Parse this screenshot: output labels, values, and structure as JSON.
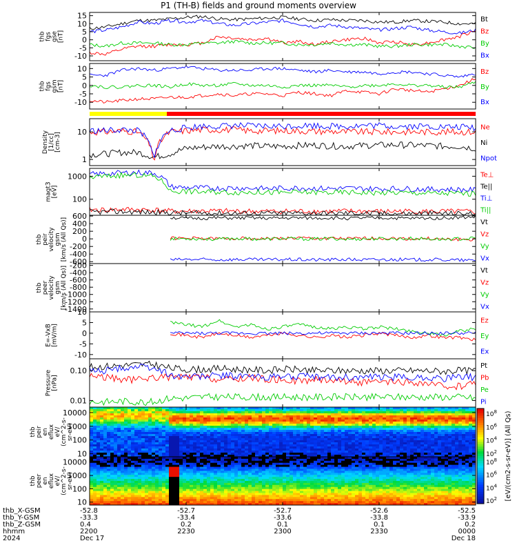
{
  "title": "P1 (TH-B) fields and ground moments overview",
  "panels": [
    {
      "id": "fgs_gse",
      "ylabel_lines": [
        "thb",
        "fgs",
        "gse",
        "[nT]"
      ],
      "yticks": [
        15,
        10,
        5,
        0,
        -5,
        -10
      ],
      "ylim": [
        -13,
        17
      ],
      "log": false,
      "series": [
        {
          "name": "Bt",
          "color": "#000000",
          "seed": 11,
          "y": [
            7,
            8,
            10,
            12,
            12,
            13,
            14,
            14.5,
            13,
            12.5,
            13,
            13.5,
            14,
            13,
            12,
            12.5,
            12,
            12,
            11,
            11,
            12,
            11.5,
            11,
            10,
            10
          ]
        },
        {
          "name": "Bz",
          "color": "#ff0000",
          "seed": 12,
          "y": [
            -8,
            -9,
            -6,
            -4,
            -4,
            -3,
            -3,
            -2,
            2,
            1,
            0,
            1,
            -2,
            -1,
            -3,
            -1,
            0,
            1,
            -2,
            -1,
            -3,
            -2,
            0,
            2,
            6
          ]
        },
        {
          "name": "By",
          "color": "#00cc00",
          "seed": 13,
          "y": [
            -3,
            -4,
            -2,
            -2,
            -2,
            -3,
            -3,
            -2,
            -2,
            -1,
            -2,
            -2,
            -2,
            -3,
            -3,
            -2,
            -3,
            -3,
            -4,
            -4,
            -3,
            -3,
            -3,
            -4,
            -5
          ]
        },
        {
          "name": "Bx",
          "color": "#0000ff",
          "seed": 14,
          "y": [
            5,
            6,
            8,
            11,
            10,
            12,
            11,
            12,
            10,
            9,
            10,
            11,
            12,
            10,
            8,
            9,
            8,
            7,
            6,
            7,
            8,
            6,
            5,
            4,
            6
          ]
        }
      ]
    },
    {
      "id": "fgs_gsm",
      "ylabel_lines": [
        "thb",
        "fgs",
        "gsm",
        "[nT]"
      ],
      "yticks": [
        10,
        5,
        0,
        -5,
        -10
      ],
      "ylim": [
        -14,
        13
      ],
      "log": false,
      "series": [
        {
          "name": "Bz",
          "color": "#ff0000",
          "seed": 21,
          "y": [
            -9,
            -10,
            -9,
            -8,
            -8,
            -7,
            -7,
            -6,
            -5,
            -6,
            -5,
            -5,
            -6,
            -4,
            -5,
            -6,
            -3,
            -4,
            -5,
            -2,
            -3,
            -4,
            -2,
            0,
            4
          ]
        },
        {
          "name": "By",
          "color": "#00cc00",
          "seed": 22,
          "y": [
            0,
            -1,
            -1,
            0,
            0,
            -1,
            1,
            0,
            0,
            1,
            0,
            0,
            -1,
            0,
            0,
            0,
            -1,
            0,
            0,
            1,
            0,
            0,
            -1,
            -1,
            2
          ]
        },
        {
          "name": "Bx",
          "color": "#0000ff",
          "seed": 23,
          "y": [
            6,
            6,
            9,
            10,
            9,
            10,
            11,
            10,
            9,
            9,
            9,
            10,
            10,
            9,
            8,
            9,
            8,
            8,
            7,
            8,
            8,
            7,
            6,
            5,
            7
          ]
        }
      ]
    },
    {
      "id": "density",
      "ylabel_lines": [
        "Density",
        "[1/cc]",
        "[cm-3]"
      ],
      "yticks": [
        10,
        1
      ],
      "ytick_labels": [
        "10",
        "1"
      ],
      "ylim": [
        0.6,
        30
      ],
      "log": true,
      "series": [
        {
          "name": "Ne",
          "color": "#ff0000",
          "seed": 31,
          "y": [
            10,
            10,
            11,
            10,
            0.7,
            10,
            11,
            12,
            12,
            12,
            11,
            11,
            11,
            11,
            10.5,
            10.5,
            10,
            10,
            10,
            10,
            10,
            10,
            10,
            10,
            10
          ]
        },
        {
          "name": "Ni",
          "color": "#000000",
          "seed": 32,
          "y": [
            1.5,
            1.6,
            1.8,
            1.8,
            1.2,
            1.6,
            2.5,
            2.8,
            3,
            3,
            3.2,
            3,
            3,
            3.2,
            3.3,
            3.1,
            3,
            3.2,
            3.3,
            3.4,
            3.3,
            3.2,
            3,
            3,
            2.5
          ]
        },
        {
          "name": "Npot",
          "color": "#0000ff",
          "seed": 33,
          "y": [
            11,
            11,
            12,
            11,
            0.7,
            11,
            14,
            16,
            16,
            17,
            16,
            16,
            16,
            17,
            17,
            16,
            16,
            17,
            17,
            16,
            16,
            16,
            15,
            15,
            14
          ]
        }
      ]
    },
    {
      "id": "temp",
      "ylabel_lines": [
        "magt3",
        "[eV]"
      ],
      "yticks": [
        1000,
        100
      ],
      "ytick_labels": [
        "1000",
        "100"
      ],
      "ylim": [
        20,
        2200
      ],
      "log": true,
      "series": [
        {
          "name": "Te⊥",
          "color": "#ff0000",
          "seed": 41,
          "y": [
            35,
            34,
            36,
            35,
            34,
            30,
            30,
            31,
            30,
            30,
            30,
            29,
            30,
            30,
            30,
            29,
            30,
            30,
            29,
            30,
            30,
            29,
            29,
            29,
            28
          ]
        },
        {
          "name": "Te||",
          "color": "#000000",
          "seed": 42,
          "y": [
            28,
            28,
            29,
            28,
            27,
            26,
            25,
            25,
            25,
            25,
            24,
            25,
            24,
            25,
            25,
            24,
            25,
            25,
            24,
            24,
            24,
            24,
            24,
            24,
            23
          ]
        },
        {
          "name": "Ti⊥",
          "color": "#0000ff",
          "seed": 43,
          "y": [
            1200,
            1300,
            1400,
            1450,
            1400,
            350,
            320,
            310,
            300,
            310,
            300,
            290,
            300,
            310,
            300,
            290,
            300,
            290,
            280,
            290,
            280,
            270,
            270,
            260,
            250
          ]
        },
        {
          "name": "Ti||",
          "color": "#00cc00",
          "seed": 44,
          "y": [
            900,
            1000,
            1100,
            1100,
            1000,
            230,
            220,
            210,
            210,
            200,
            205,
            200,
            195,
            200,
            200,
            195,
            200,
            195,
            190,
            195,
            190,
            185,
            180,
            180,
            170
          ]
        }
      ]
    },
    {
      "id": "peir_vel",
      "ylabel_lines": [
        "thb",
        "peir",
        "velocity",
        "gsm",
        "[km/s (All Qs)]"
      ],
      "yticks": [
        600,
        400,
        200,
        0,
        -200,
        -400,
        -600
      ],
      "ylim": [
        -650,
        620
      ],
      "log": false,
      "series": [
        {
          "name": "Vt",
          "color": "#000000",
          "seed": 51,
          "y": [
            null,
            null,
            null,
            null,
            null,
            560,
            540,
            540,
            550,
            545,
            550,
            540,
            545,
            550,
            545,
            550,
            540,
            545,
            550,
            545,
            540,
            545,
            550,
            560,
            580
          ]
        },
        {
          "name": "Vz",
          "color": "#ff0000",
          "seed": 52,
          "y": [
            null,
            null,
            null,
            null,
            null,
            20,
            10,
            15,
            0,
            20,
            10,
            0,
            15,
            20,
            10,
            15,
            0,
            10,
            20,
            10,
            0,
            10,
            -20,
            -10,
            -30
          ]
        },
        {
          "name": "Vy",
          "color": "#00cc00",
          "seed": 53,
          "y": [
            null,
            null,
            null,
            null,
            null,
            0,
            10,
            0,
            -10,
            10,
            0,
            -10,
            10,
            0,
            -5,
            10,
            -10,
            0,
            5,
            0,
            10,
            0,
            -10,
            0,
            10
          ]
        },
        {
          "name": "Vx",
          "color": "#0000ff",
          "seed": 54,
          "y": [
            null,
            null,
            null,
            null,
            null,
            -550,
            -540,
            -545,
            -550,
            -540,
            -545,
            -550,
            -540,
            -545,
            -550,
            -545,
            -540,
            -550,
            -545,
            -540,
            -550,
            -545,
            -550,
            -560,
            -570
          ]
        }
      ]
    },
    {
      "id": "peer_vel",
      "ylabel_lines": [
        "thb",
        "peer",
        "velocity",
        "gsm",
        "[km/s (All Qs)]"
      ],
      "yticks": [
        -200,
        -400,
        -600,
        -800,
        -1000,
        -1200,
        -1400
      ],
      "ylim": [
        -1480,
        -150
      ],
      "log": false,
      "series": [
        {
          "name": "Vt",
          "color": "#000000",
          "seed": 61,
          "y": []
        },
        {
          "name": "Vz",
          "color": "#ff0000",
          "seed": 62,
          "y": []
        },
        {
          "name": "Vy",
          "color": "#00cc00",
          "seed": 63,
          "y": []
        },
        {
          "name": "Vx",
          "color": "#0000ff",
          "seed": 64,
          "y": []
        }
      ]
    },
    {
      "id": "efield",
      "ylabel_lines": [
        "E=-VxB",
        "[mV/m]"
      ],
      "yticks": [
        10,
        5,
        0,
        -5,
        -10
      ],
      "ylim": [
        -12,
        10
      ],
      "log": false,
      "series": [
        {
          "name": "Ez",
          "color": "#ff0000",
          "seed": 71,
          "y": [
            null,
            null,
            null,
            null,
            null,
            0,
            -1,
            -2,
            0,
            -1,
            -2,
            -1,
            0,
            -1,
            -2,
            -1,
            -2,
            -1,
            0,
            -1,
            -2,
            -1,
            -2,
            -2,
            -3
          ]
        },
        {
          "name": "Ey",
          "color": "#00cc00",
          "seed": 72,
          "y": [
            null,
            null,
            null,
            null,
            null,
            5,
            4,
            3,
            6,
            3,
            4,
            2,
            3,
            4,
            3,
            2,
            3,
            2,
            3,
            2,
            1,
            0,
            -1,
            1,
            2
          ]
        },
        {
          "name": "Ex",
          "color": "#0000ff",
          "seed": 73,
          "y": [
            null,
            null,
            null,
            null,
            null,
            0,
            0,
            0,
            0,
            0,
            0,
            0,
            0,
            0,
            0,
            0,
            0,
            0,
            0,
            0,
            0,
            0,
            0,
            0,
            0
          ]
        }
      ]
    },
    {
      "id": "pressure",
      "ylabel_lines": [
        "Pressure",
        "[nPa]"
      ],
      "yticks": [
        0.1,
        0.01
      ],
      "ytick_labels": [
        "0.10",
        "0.01"
      ],
      "ylim": [
        0.006,
        0.25
      ],
      "log": true,
      "series": [
        {
          "name": "Pt",
          "color": "#000000",
          "seed": 81,
          "y": [
            0.13,
            0.14,
            0.15,
            0.16,
            0.16,
            0.12,
            0.11,
            0.11,
            0.12,
            0.11,
            0.11,
            0.1,
            0.11,
            0.11,
            0.1,
            0.1,
            0.1,
            0.1,
            0.1,
            0.1,
            0.1,
            0.1,
            0.095,
            0.1,
            0.1
          ]
        },
        {
          "name": "Pb",
          "color": "#ff0000",
          "seed": 82,
          "y": [
            0.07,
            0.06,
            0.05,
            0.05,
            0.06,
            0.06,
            0.06,
            0.06,
            0.05,
            0.05,
            0.06,
            0.05,
            0.05,
            0.045,
            0.05,
            0.05,
            0.045,
            0.04,
            0.04,
            0.04,
            0.04,
            0.035,
            0.03,
            0.03,
            0.04
          ]
        },
        {
          "name": "Pe",
          "color": "#00cc00",
          "seed": 83,
          "y": [
            0.009,
            0.009,
            0.0095,
            0.009,
            0.009,
            0.012,
            0.012,
            0.013,
            0.013,
            0.013,
            0.013,
            0.013,
            0.013,
            0.013,
            0.013,
            0.013,
            0.013,
            0.013,
            0.013,
            0.013,
            0.013,
            0.013,
            0.013,
            0.013,
            0.012
          ]
        },
        {
          "name": "Pi",
          "color": "#0000ff",
          "seed": 84,
          "y": [
            0.1,
            0.1,
            0.12,
            0.14,
            0.12,
            0.07,
            0.065,
            0.065,
            0.07,
            0.065,
            0.065,
            0.06,
            0.065,
            0.065,
            0.06,
            0.06,
            0.06,
            0.06,
            0.06,
            0.06,
            0.06,
            0.06,
            0.055,
            0.06,
            0.06
          ]
        }
      ]
    },
    {
      "id": "peir_spec",
      "ylabel_lines": [
        "thb",
        "peir",
        "en",
        "eflux",
        "eV/",
        "(cm^2-s-",
        "sr-eV)"
      ],
      "yticks": [
        10000,
        1000,
        100,
        10
      ],
      "ytick_labels": [
        "10000",
        "1000",
        "100",
        "10"
      ],
      "ylim": [
        6,
        25000
      ],
      "log": true,
      "type": "spectrogram"
    },
    {
      "id": "peer_spec",
      "ylabel_lines": [
        "thb",
        "peer",
        "en",
        "eflux",
        "eV/",
        "(cm^2-s-",
        "sr-eV)"
      ],
      "yticks": [
        10000,
        1000,
        100,
        10
      ],
      "ytick_labels": [
        "10000",
        "1000",
        "100",
        "10"
      ],
      "ylim": [
        6,
        25000
      ],
      "log": true,
      "type": "spectrogram"
    }
  ],
  "colorbar": {
    "label": "[eV/(cm2-s-sr-eV)] (All Qs)",
    "exponents": [
      "8",
      "6",
      "4",
      "2"
    ],
    "base": "10"
  },
  "mode_bar": {
    "segments": [
      {
        "from": 0,
        "to": 0.2,
        "color": "#ffff00"
      },
      {
        "from": 0.2,
        "to": 1,
        "color": "#ff0000"
      }
    ]
  },
  "xaxis": {
    "tick_fractions": [
      0,
      0.25,
      0.5,
      0.75,
      1
    ],
    "row_labels": [
      "thb_X-GSM",
      "thb_Y-GSM",
      "thb_Z-GSM",
      "hhmm",
      "2024"
    ],
    "columns": [
      [
        "-52.8",
        "-33.3",
        "0.4",
        "2200",
        "Dec 17"
      ],
      [
        "-52.7",
        "-33.4",
        "0.2",
        "2230",
        ""
      ],
      [
        "-52.7",
        "-33.6",
        "0.1",
        "2300",
        ""
      ],
      [
        "-52.6",
        "-33.8",
        "0.1",
        "2330",
        ""
      ],
      [
        "-52.5",
        "-33.9",
        "0.2",
        "0000",
        "Dec 18"
      ]
    ]
  }
}
